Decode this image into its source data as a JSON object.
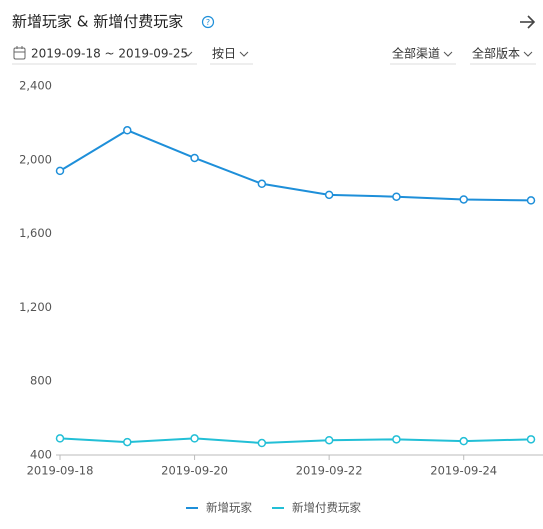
{
  "header": {
    "title": "新增玩家 & 新增付费玩家",
    "date_range": "2019-09-18 ~ 2019-09-25",
    "granularity": "按日",
    "channel": "全部渠道",
    "version": "全部版本"
  },
  "chart_data": {
    "type": "line",
    "categories": [
      "2019-09-18",
      null,
      "2019-09-20",
      null,
      "2019-09-22",
      null,
      "2019-09-24",
      null
    ],
    "series": [
      {
        "name": "新增玩家",
        "color": "#1e8fd9",
        "values": [
          1940,
          2160,
          2010,
          1870,
          1810,
          1800,
          1785,
          1780
        ]
      },
      {
        "name": "新增付费玩家",
        "color": "#22bfd6",
        "values": [
          490,
          470,
          490,
          465,
          480,
          485,
          475,
          485
        ]
      }
    ],
    "ylim": [
      400,
      2400
    ],
    "yticks": [
      400,
      800,
      {
        "value": 1200,
        "label": "1,200"
      },
      {
        "value": 1600,
        "label": "1,600"
      },
      {
        "value": 2000,
        "label": "2,000"
      },
      {
        "value": 2400,
        "label": "2,400"
      }
    ],
    "grid": false,
    "legend": "bottom"
  }
}
